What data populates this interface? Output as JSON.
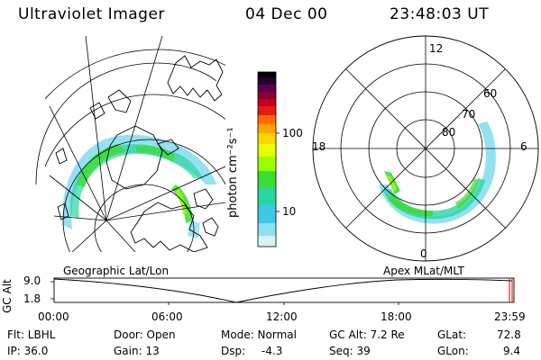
{
  "header": {
    "instrument": "Ultraviolet Imager",
    "date": "04 Dec 00",
    "time": "23:48:03 UT"
  },
  "colorbar": {
    "unit_label": "photon cm⁻²s⁻¹",
    "ticks": [
      "100",
      "10"
    ],
    "colors": [
      "#000000",
      "#2a0033",
      "#5a0050",
      "#8a0030",
      "#c4001a",
      "#e41a1c",
      "#ff6a00",
      "#ffa500",
      "#ffd500",
      "#e6ff00",
      "#9cff00",
      "#3cdc32",
      "#2ad6a0",
      "#3cc8e6",
      "#8ce0f0",
      "#d8f0f8"
    ]
  },
  "geo_panel": {
    "label": "Geographic Lat/Lon"
  },
  "polar_panel": {
    "label": "Apex MLat/MLT",
    "mlt_labels": {
      "top": "12",
      "left": "18",
      "right": "6",
      "bottom": "0"
    },
    "lat_labels": [
      "60",
      "70",
      "80"
    ]
  },
  "altitude_plot": {
    "axis_label": "GC Alt",
    "y_ticks": [
      "9.0",
      "1.8"
    ],
    "x_ticks": [
      "00:00",
      "06:00",
      "12:00",
      "18:00",
      "23:59"
    ],
    "marker_color": "#cc0000"
  },
  "info": {
    "row1": {
      "filter": "Flt: LBHL",
      "door": "Door: Open",
      "mode": "Mode: Normal",
      "gc_alt": "GC Alt: 7.2 Re",
      "glat_label": "GLat:",
      "glat_value": "72.8"
    },
    "row2": {
      "ip": "IP: 36.0",
      "gain": "Gain: 13",
      "dsp_label": "Dsp:",
      "dsp_value": "-4.3",
      "seq": "Seq: 39",
      "glon_label": "GLon:",
      "glon_value": "9.4"
    }
  }
}
